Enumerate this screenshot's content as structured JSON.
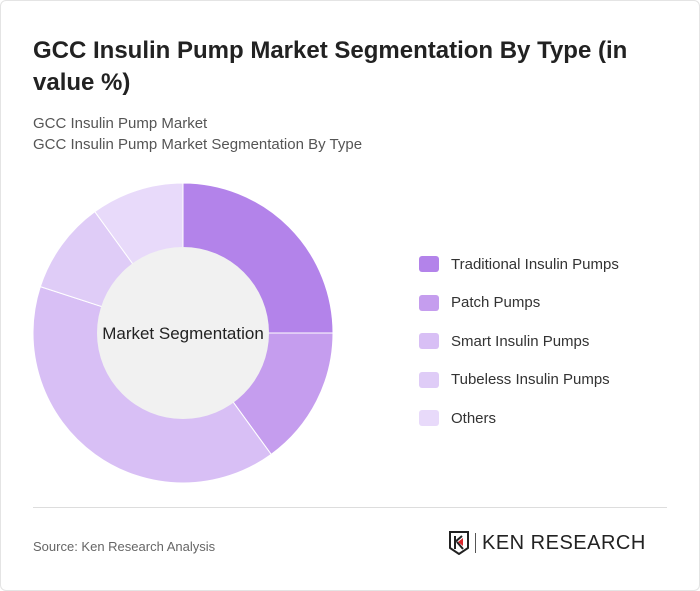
{
  "title": "GCC Insulin Pump Market Segmentation By Type (in value %)",
  "subtitle1": "GCC Insulin Pump Market",
  "subtitle2": "GCC Insulin Pump Market Segmentation By Type",
  "chart_data": {
    "type": "pie",
    "donut": true,
    "center_label": "Market Segmentation",
    "categories": [
      "Traditional Insulin Pumps",
      "Patch Pumps",
      "Smart Insulin Pumps",
      "Tubeless Insulin Pumps",
      "Others"
    ],
    "values": [
      25,
      15,
      40,
      10,
      10
    ],
    "colors": [
      "#b383ea",
      "#c59dee",
      "#d8bff5",
      "#dfccf7",
      "#e8dafa"
    ],
    "legend_position": "right"
  },
  "source": "Source: Ken Research Analysis",
  "logo_text": "KEN RESEARCH"
}
